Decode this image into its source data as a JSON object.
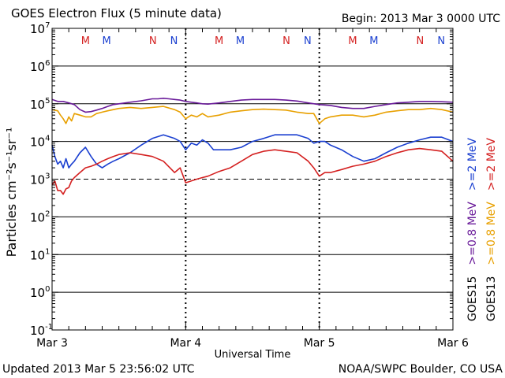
{
  "chart_data": {
    "type": "line",
    "title": "GOES Electron Flux (5 minute data)",
    "begin_label": "Begin: 2013 Mar 3 0000 UTC",
    "xlabel": "Universal Time",
    "ylabel": "Particles cm⁻²s⁻¹sr⁻¹",
    "updated": "Updated 2013 Mar  5 23:56:02 UTC",
    "credit": "NOAA/SWPC Boulder, CO USA",
    "y_scale": "log",
    "ylim": [
      0.1,
      10000000
    ],
    "xlim": [
      0,
      72
    ],
    "x_unit": "hours since 2013 Mar 3 0000 UTC",
    "x_ticks": [
      {
        "x": 0,
        "label": "Mar 3"
      },
      {
        "x": 24,
        "label": "Mar 4"
      },
      {
        "x": 48,
        "label": "Mar 5"
      },
      {
        "x": 72,
        "label": "Mar 6"
      }
    ],
    "y_ticks": [
      {
        "value": 10000000,
        "base": "10",
        "exp": "7"
      },
      {
        "value": 1000000,
        "base": "10",
        "exp": "6"
      },
      {
        "value": 100000,
        "base": "10",
        "exp": "5"
      },
      {
        "value": 10000,
        "base": "10",
        "exp": "4"
      },
      {
        "value": 1000,
        "base": "10",
        "exp": "3"
      },
      {
        "value": 100,
        "base": "10",
        "exp": "2"
      },
      {
        "value": 10,
        "base": "10",
        "exp": "1"
      },
      {
        "value": 1,
        "base": "10",
        "exp": "0"
      },
      {
        "value": 0.1,
        "base": "10",
        "exp": "-1"
      }
    ],
    "gridlines": [
      1000000,
      100000,
      10000,
      100,
      10,
      1
    ],
    "threshold": {
      "value": 1000,
      "style": "dashed"
    },
    "noon_markers": [
      {
        "x": 6,
        "label": "M",
        "color": "#d42020"
      },
      {
        "x": 9.8,
        "label": "M",
        "color": "#1a3fd0"
      },
      {
        "x": 18.1,
        "label": "N",
        "color": "#d42020"
      },
      {
        "x": 21.9,
        "label": "N",
        "color": "#1a3fd0"
      },
      {
        "x": 30,
        "label": "M",
        "color": "#d42020"
      },
      {
        "x": 33.8,
        "label": "M",
        "color": "#1a3fd0"
      },
      {
        "x": 42.1,
        "label": "N",
        "color": "#d42020"
      },
      {
        "x": 45.9,
        "label": "N",
        "color": "#1a3fd0"
      },
      {
        "x": 54,
        "label": "M",
        "color": "#d42020"
      },
      {
        "x": 57.8,
        "label": "M",
        "color": "#1a3fd0"
      },
      {
        "x": 66.1,
        "label": "N",
        "color": "#d42020"
      },
      {
        "x": 69.9,
        "label": "N",
        "color": "#1a3fd0"
      }
    ],
    "legend": {
      "placement": "right",
      "groups": [
        {
          "satellite": "GOES15",
          "satellite_color": "#000000",
          "entries": [
            {
              "label": ">=0.8  MeV",
              "color": "#6a1b9a"
            },
            {
              "label": ">=2  MeV",
              "color": "#1a3fd0"
            }
          ]
        },
        {
          "satellite": "GOES13",
          "satellite_color": "#000000",
          "entries": [
            {
              "label": ">=0.8  MeV",
              "color": "#e8a000"
            },
            {
              "label": ">=2  MeV",
              "color": "#d42020"
            }
          ]
        }
      ]
    },
    "series": [
      {
        "name": "GOES15 >=0.8 MeV",
        "color": "#6a1b9a",
        "x": [
          0,
          1,
          2,
          3,
          4,
          5,
          6,
          7,
          8,
          9,
          10,
          11,
          12,
          14,
          16,
          18,
          19,
          20,
          21,
          22,
          23,
          24,
          25,
          26,
          27,
          28,
          30,
          32,
          34,
          36,
          38,
          40,
          42,
          44,
          46,
          48,
          50,
          52,
          54,
          56,
          58,
          60,
          62,
          64,
          66,
          68,
          70,
          72
        ],
        "y": [
          130000,
          115000,
          115000,
          105000,
          95000,
          70000,
          60000,
          62000,
          68000,
          75000,
          85000,
          95000,
          100000,
          110000,
          120000,
          135000,
          135000,
          140000,
          135000,
          130000,
          125000,
          115000,
          110000,
          105000,
          100000,
          98000,
          105000,
          115000,
          125000,
          130000,
          130000,
          130000,
          125000,
          118000,
          105000,
          95000,
          90000,
          80000,
          75000,
          75000,
          85000,
          95000,
          105000,
          110000,
          115000,
          115000,
          113000,
          110000
        ]
      },
      {
        "name": "GOES13 >=0.8 MeV",
        "color": "#e8a000",
        "x": [
          0,
          1,
          1.5,
          2,
          2.5,
          3,
          3.5,
          4,
          5,
          6,
          7,
          8,
          9,
          10,
          12,
          14,
          16,
          18,
          20,
          22,
          23,
          24,
          25,
          26,
          27,
          28,
          30,
          32,
          34,
          36,
          38,
          40,
          42,
          44,
          46,
          47,
          48,
          49,
          50,
          52,
          54,
          56,
          58,
          60,
          62,
          64,
          66,
          68,
          70,
          72
        ],
        "y": [
          70000,
          65000,
          50000,
          40000,
          30000,
          45000,
          35000,
          55000,
          50000,
          45000,
          45000,
          55000,
          60000,
          65000,
          75000,
          80000,
          75000,
          80000,
          85000,
          70000,
          60000,
          40000,
          50000,
          45000,
          55000,
          45000,
          50000,
          60000,
          65000,
          70000,
          72000,
          70000,
          68000,
          60000,
          55000,
          55000,
          30000,
          40000,
          45000,
          50000,
          50000,
          45000,
          50000,
          60000,
          65000,
          70000,
          70000,
          75000,
          70000,
          60000
        ]
      },
      {
        "name": "GOES15 >=2 MeV",
        "color": "#1a3fd0",
        "x": [
          0,
          0.5,
          1,
          1.5,
          2,
          2.5,
          3,
          3.5,
          4,
          5,
          6,
          7,
          8,
          9,
          10,
          11,
          12,
          14,
          16,
          18,
          20,
          22,
          23,
          24,
          25,
          26,
          27,
          28,
          29,
          30,
          32,
          34,
          36,
          38,
          40,
          42,
          44,
          46,
          47,
          48,
          49,
          50,
          52,
          54,
          56,
          58,
          60,
          62,
          64,
          66,
          68,
          70,
          72
        ],
        "y": [
          8000,
          4000,
          2500,
          3000,
          2000,
          3500,
          2000,
          2500,
          3000,
          5000,
          7000,
          4000,
          2500,
          2000,
          2500,
          3000,
          3500,
          5000,
          8000,
          12000,
          15000,
          12000,
          10000,
          6000,
          9000,
          8000,
          11000,
          9000,
          6000,
          6000,
          6000,
          7000,
          10000,
          12000,
          15000,
          15000,
          15000,
          12000,
          9000,
          10000,
          10000,
          8000,
          6000,
          4000,
          3000,
          3500,
          5000,
          7000,
          9000,
          11000,
          13000,
          13000,
          10000
        ]
      },
      {
        "name": "GOES13 >=2 MeV",
        "color": "#d42020",
        "x": [
          0,
          0.5,
          1,
          1.5,
          2,
          2.5,
          3,
          3.5,
          4,
          5,
          6,
          7,
          8,
          9,
          10,
          11,
          12,
          14,
          16,
          18,
          20,
          22,
          23,
          24,
          25,
          26,
          27,
          28,
          30,
          32,
          34,
          36,
          38,
          40,
          42,
          44,
          46,
          47,
          48,
          49,
          50,
          52,
          54,
          56,
          58,
          60,
          62,
          64,
          66,
          68,
          70,
          72
        ],
        "y": [
          700,
          900,
          500,
          500,
          400,
          550,
          600,
          900,
          1100,
          1500,
          2000,
          2200,
          2500,
          3000,
          3500,
          4000,
          4500,
          5000,
          4500,
          4000,
          3000,
          1500,
          2000,
          800,
          900,
          1000,
          1100,
          1200,
          1600,
          2000,
          3000,
          4500,
          5500,
          6000,
          5500,
          5000,
          3000,
          2000,
          1200,
          1500,
          1500,
          1800,
          2200,
          2500,
          3000,
          4000,
          5000,
          6000,
          6500,
          6000,
          5500,
          3000
        ]
      }
    ]
  }
}
